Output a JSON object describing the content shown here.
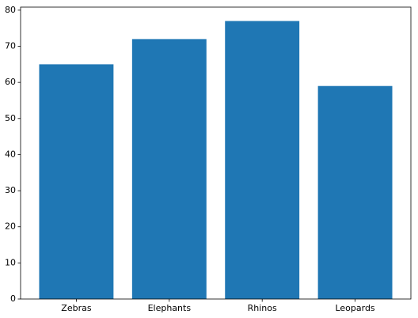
{
  "chart_data": {
    "type": "bar",
    "categories": [
      "Zebras",
      "Elephants",
      "Rhinos",
      "Leopards"
    ],
    "values": [
      65,
      72,
      77,
      59
    ],
    "color": "#1f77b4",
    "ylim": [
      0,
      80.85
    ],
    "yticks": [
      0,
      10,
      20,
      30,
      40,
      50,
      60,
      70,
      80
    ],
    "grid": false
  }
}
